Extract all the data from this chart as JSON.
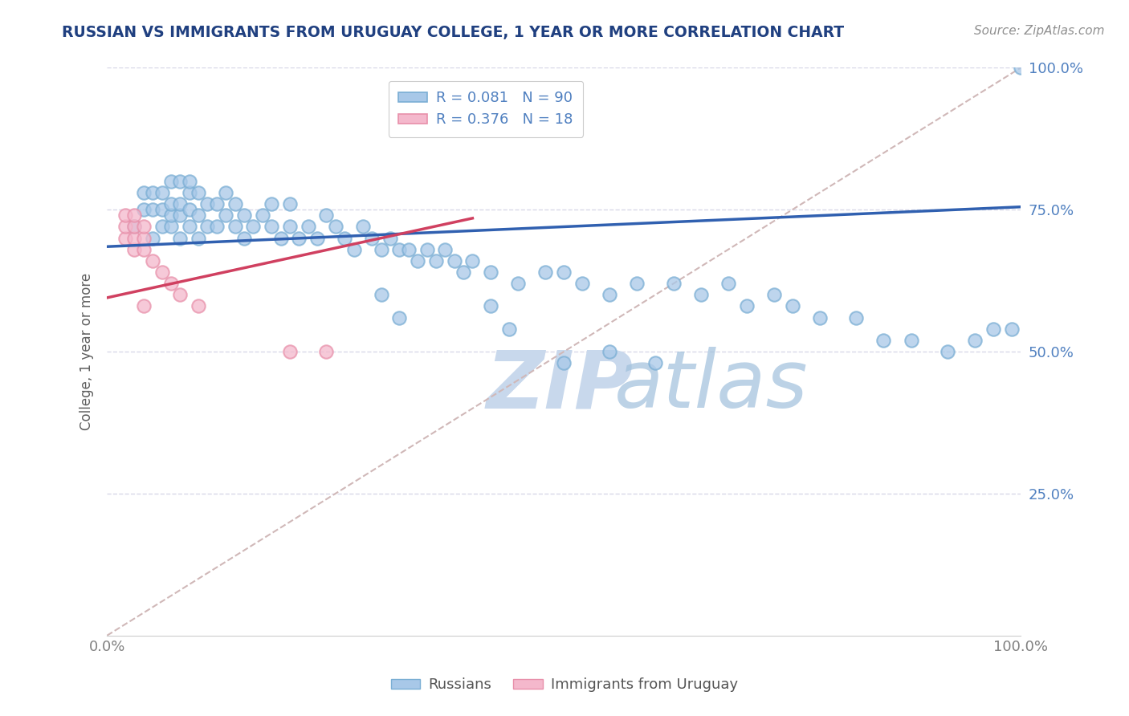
{
  "title": "RUSSIAN VS IMMIGRANTS FROM URUGUAY COLLEGE, 1 YEAR OR MORE CORRELATION CHART",
  "source_text": "Source: ZipAtlas.com",
  "ylabel": "College, 1 year or more",
  "xlim": [
    0.0,
    1.0
  ],
  "ylim": [
    0.0,
    1.0
  ],
  "xtick_positions": [
    0.0,
    1.0
  ],
  "xtick_labels": [
    "0.0%",
    "100.0%"
  ],
  "ytick_positions": [
    0.25,
    0.5,
    0.75,
    1.0
  ],
  "ytick_labels": [
    "25.0%",
    "50.0%",
    "75.0%",
    "100.0%"
  ],
  "blue_color": "#a8c8e8",
  "blue_edge_color": "#7aaed4",
  "pink_color": "#f4b8cc",
  "pink_edge_color": "#e890aa",
  "blue_line_color": "#3060b0",
  "pink_line_color": "#d04060",
  "dashed_line_color": "#d0b8b8",
  "grid_color": "#d8d8e8",
  "ytick_color": "#5080c0",
  "xtick_color": "#808080",
  "watermark_zip_color": "#c8d8ec",
  "watermark_atlas_color": "#a0c0dc",
  "title_color": "#204080",
  "source_color": "#909090",
  "ylabel_color": "#606060",
  "r_blue": 0.081,
  "n_blue": 90,
  "r_pink": 0.376,
  "n_pink": 18,
  "blue_line_x0": 0.0,
  "blue_line_y0": 0.685,
  "blue_line_x1": 1.0,
  "blue_line_y1": 0.755,
  "pink_line_x0": 0.0,
  "pink_line_y0": 0.595,
  "pink_line_x1": 0.4,
  "pink_line_y1": 0.735,
  "blue_x": [
    0.03,
    0.04,
    0.04,
    0.05,
    0.05,
    0.05,
    0.06,
    0.06,
    0.06,
    0.07,
    0.07,
    0.07,
    0.07,
    0.08,
    0.08,
    0.08,
    0.08,
    0.09,
    0.09,
    0.09,
    0.09,
    0.1,
    0.1,
    0.1,
    0.11,
    0.11,
    0.12,
    0.12,
    0.13,
    0.13,
    0.14,
    0.14,
    0.15,
    0.15,
    0.16,
    0.17,
    0.18,
    0.18,
    0.19,
    0.2,
    0.2,
    0.21,
    0.22,
    0.23,
    0.24,
    0.25,
    0.26,
    0.27,
    0.28,
    0.29,
    0.3,
    0.31,
    0.32,
    0.33,
    0.34,
    0.35,
    0.36,
    0.37,
    0.38,
    0.39,
    0.4,
    0.42,
    0.45,
    0.48,
    0.5,
    0.52,
    0.55,
    0.58,
    0.62,
    0.65,
    0.68,
    0.7,
    0.73,
    0.75,
    0.78,
    0.82,
    0.85,
    0.88,
    0.92,
    0.95,
    0.97,
    0.99,
    1.0,
    0.3,
    0.32,
    0.42,
    0.44,
    0.5,
    0.55,
    0.6
  ],
  "blue_y": [
    0.72,
    0.75,
    0.78,
    0.7,
    0.75,
    0.78,
    0.72,
    0.75,
    0.78,
    0.72,
    0.74,
    0.76,
    0.8,
    0.7,
    0.74,
    0.76,
    0.8,
    0.72,
    0.75,
    0.78,
    0.8,
    0.7,
    0.74,
    0.78,
    0.72,
    0.76,
    0.72,
    0.76,
    0.74,
    0.78,
    0.72,
    0.76,
    0.7,
    0.74,
    0.72,
    0.74,
    0.72,
    0.76,
    0.7,
    0.72,
    0.76,
    0.7,
    0.72,
    0.7,
    0.74,
    0.72,
    0.7,
    0.68,
    0.72,
    0.7,
    0.68,
    0.7,
    0.68,
    0.68,
    0.66,
    0.68,
    0.66,
    0.68,
    0.66,
    0.64,
    0.66,
    0.64,
    0.62,
    0.64,
    0.64,
    0.62,
    0.6,
    0.62,
    0.62,
    0.6,
    0.62,
    0.58,
    0.6,
    0.58,
    0.56,
    0.56,
    0.52,
    0.52,
    0.5,
    0.52,
    0.54,
    0.54,
    1.0,
    0.6,
    0.56,
    0.58,
    0.54,
    0.48,
    0.5,
    0.48
  ],
  "pink_x": [
    0.02,
    0.02,
    0.02,
    0.03,
    0.03,
    0.03,
    0.03,
    0.04,
    0.04,
    0.04,
    0.04,
    0.05,
    0.06,
    0.07,
    0.08,
    0.1,
    0.2,
    0.24
  ],
  "pink_y": [
    0.7,
    0.72,
    0.74,
    0.68,
    0.7,
    0.72,
    0.74,
    0.68,
    0.7,
    0.72,
    0.58,
    0.66,
    0.64,
    0.62,
    0.6,
    0.58,
    0.5,
    0.5
  ]
}
